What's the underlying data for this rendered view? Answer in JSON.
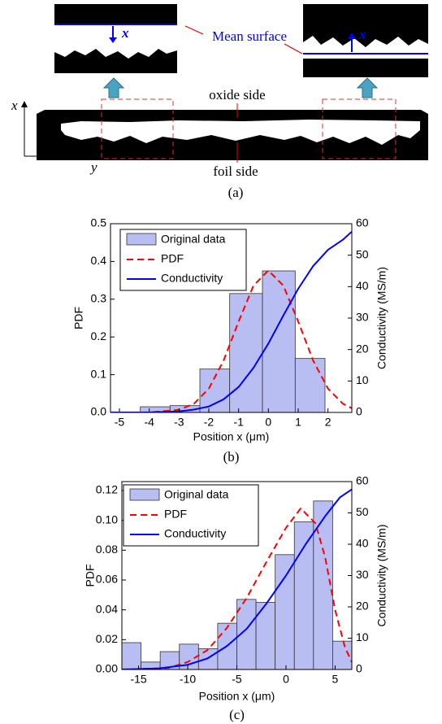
{
  "panel_a": {
    "axis_x": "x",
    "axis_y": "y",
    "oxide": "oxide side",
    "foil": "foil side",
    "mean_surface": "Mean surface",
    "inset_left_x": "x",
    "inset_right_x": "x",
    "caption": "(a)"
  },
  "chart_data": [
    {
      "type": "histogram",
      "caption": "(b)",
      "xlabel": "Position x (μm)",
      "ylabel": "PDF",
      "y2label": "Conductivity (MS/m)",
      "name": "Original data",
      "color": "#b8bdf2",
      "bins": [
        -4.3,
        -3.3,
        -2.3,
        -1.3,
        -0.2,
        0.9,
        1.9
      ],
      "values": [
        0.015,
        0.018,
        0.115,
        0.315,
        0.375,
        0.143
      ],
      "lines": [
        {
          "name": "PDF",
          "color": "#ff0000",
          "dashed": true,
          "x": [
            -5.3,
            -4,
            -3,
            -2.5,
            -2,
            -1.5,
            -1,
            -0.5,
            0,
            0.5,
            1,
            1.5,
            2,
            2.5,
            2.8
          ],
          "values": [
            0,
            0,
            0.007,
            0.023,
            0.063,
            0.138,
            0.241,
            0.336,
            0.376,
            0.336,
            0.241,
            0.138,
            0.063,
            0.023,
            0.011
          ]
        },
        {
          "name": "Conductivity",
          "color": "#0000ff",
          "dashed": false,
          "axis": "y2",
          "x": [
            -5.3,
            -4,
            -3,
            -2.5,
            -2,
            -1.5,
            -1,
            -0.5,
            0,
            0.5,
            1,
            1.5,
            2,
            2.5,
            2.8
          ],
          "values": [
            0,
            0,
            0.3,
            0.9,
            1.9,
            4.2,
            8.1,
            14.2,
            21.9,
            30.8,
            39.3,
            46.5,
            51.7,
            54.9,
            57.5
          ]
        }
      ],
      "xlim": [
        -5.3,
        2.8
      ],
      "xticks": [
        -5,
        -4,
        -3,
        -2,
        -1,
        0,
        1,
        2
      ],
      "ylim": [
        0,
        0.5
      ],
      "yticks": [
        {
          "value": 0,
          "label": "0.0"
        },
        0.1,
        0.2,
        0.3,
        0.4,
        0.5
      ],
      "y2lim": [
        0,
        60
      ],
      "y2ticks": [
        0,
        10,
        20,
        30,
        40,
        50,
        60
      ]
    },
    {
      "type": "histogram",
      "caption": "(c)",
      "xlabel": "Position x (μm)",
      "ylabel": "PDF",
      "y2label": "Conductivity (MS/m)",
      "name": "Original data",
      "color": "#b8bdf2",
      "bins": [
        -16.7,
        -14.75,
        -12.8,
        -10.85,
        -8.9,
        -6.95,
        -5.0,
        -3.05,
        -1.1,
        0.85,
        2.8,
        4.75,
        6.7
      ],
      "values": [
        0.018,
        0.005,
        0.012,
        0.017,
        0.014,
        0.031,
        0.047,
        0.045,
        0.077,
        0.099,
        0.113,
        0.019
      ],
      "lines": [
        {
          "name": "PDF",
          "color": "#ff0000",
          "dashed": true,
          "x": [
            -16.7,
            -12,
            -10,
            -8,
            -6,
            -4,
            -2,
            0,
            1.5,
            3,
            4,
            5,
            6,
            6.7
          ],
          "values": [
            0,
            0.001,
            0.005,
            0.013,
            0.028,
            0.048,
            0.072,
            0.095,
            0.108,
            0.098,
            0.075,
            0.04,
            0.015,
            0.005
          ]
        },
        {
          "name": "Conductivity",
          "color": "#0000ff",
          "dashed": false,
          "axis": "y2",
          "x": [
            -16.7,
            -13,
            -10,
            -8,
            -6,
            -4,
            -2,
            0,
            2,
            4,
            5.5,
            6.7
          ],
          "values": [
            0,
            0.3,
            1.5,
            3.5,
            7.5,
            13,
            21,
            30,
            40,
            49,
            55,
            57.5
          ]
        }
      ],
      "xlim": [
        -16.7,
        6.7
      ],
      "xticks": [
        -15,
        -10,
        -5,
        0,
        5
      ],
      "ylim": [
        0,
        0.126
      ],
      "yticks": [
        {
          "value": 0,
          "label": "0.00"
        },
        0.02,
        0.04,
        0.06,
        0.08,
        {
          "value": 0.1,
          "label": "0.10"
        },
        0.12
      ],
      "y2lim": [
        0,
        60
      ],
      "y2ticks": [
        0,
        10,
        20,
        30,
        40,
        50,
        60
      ]
    }
  ]
}
